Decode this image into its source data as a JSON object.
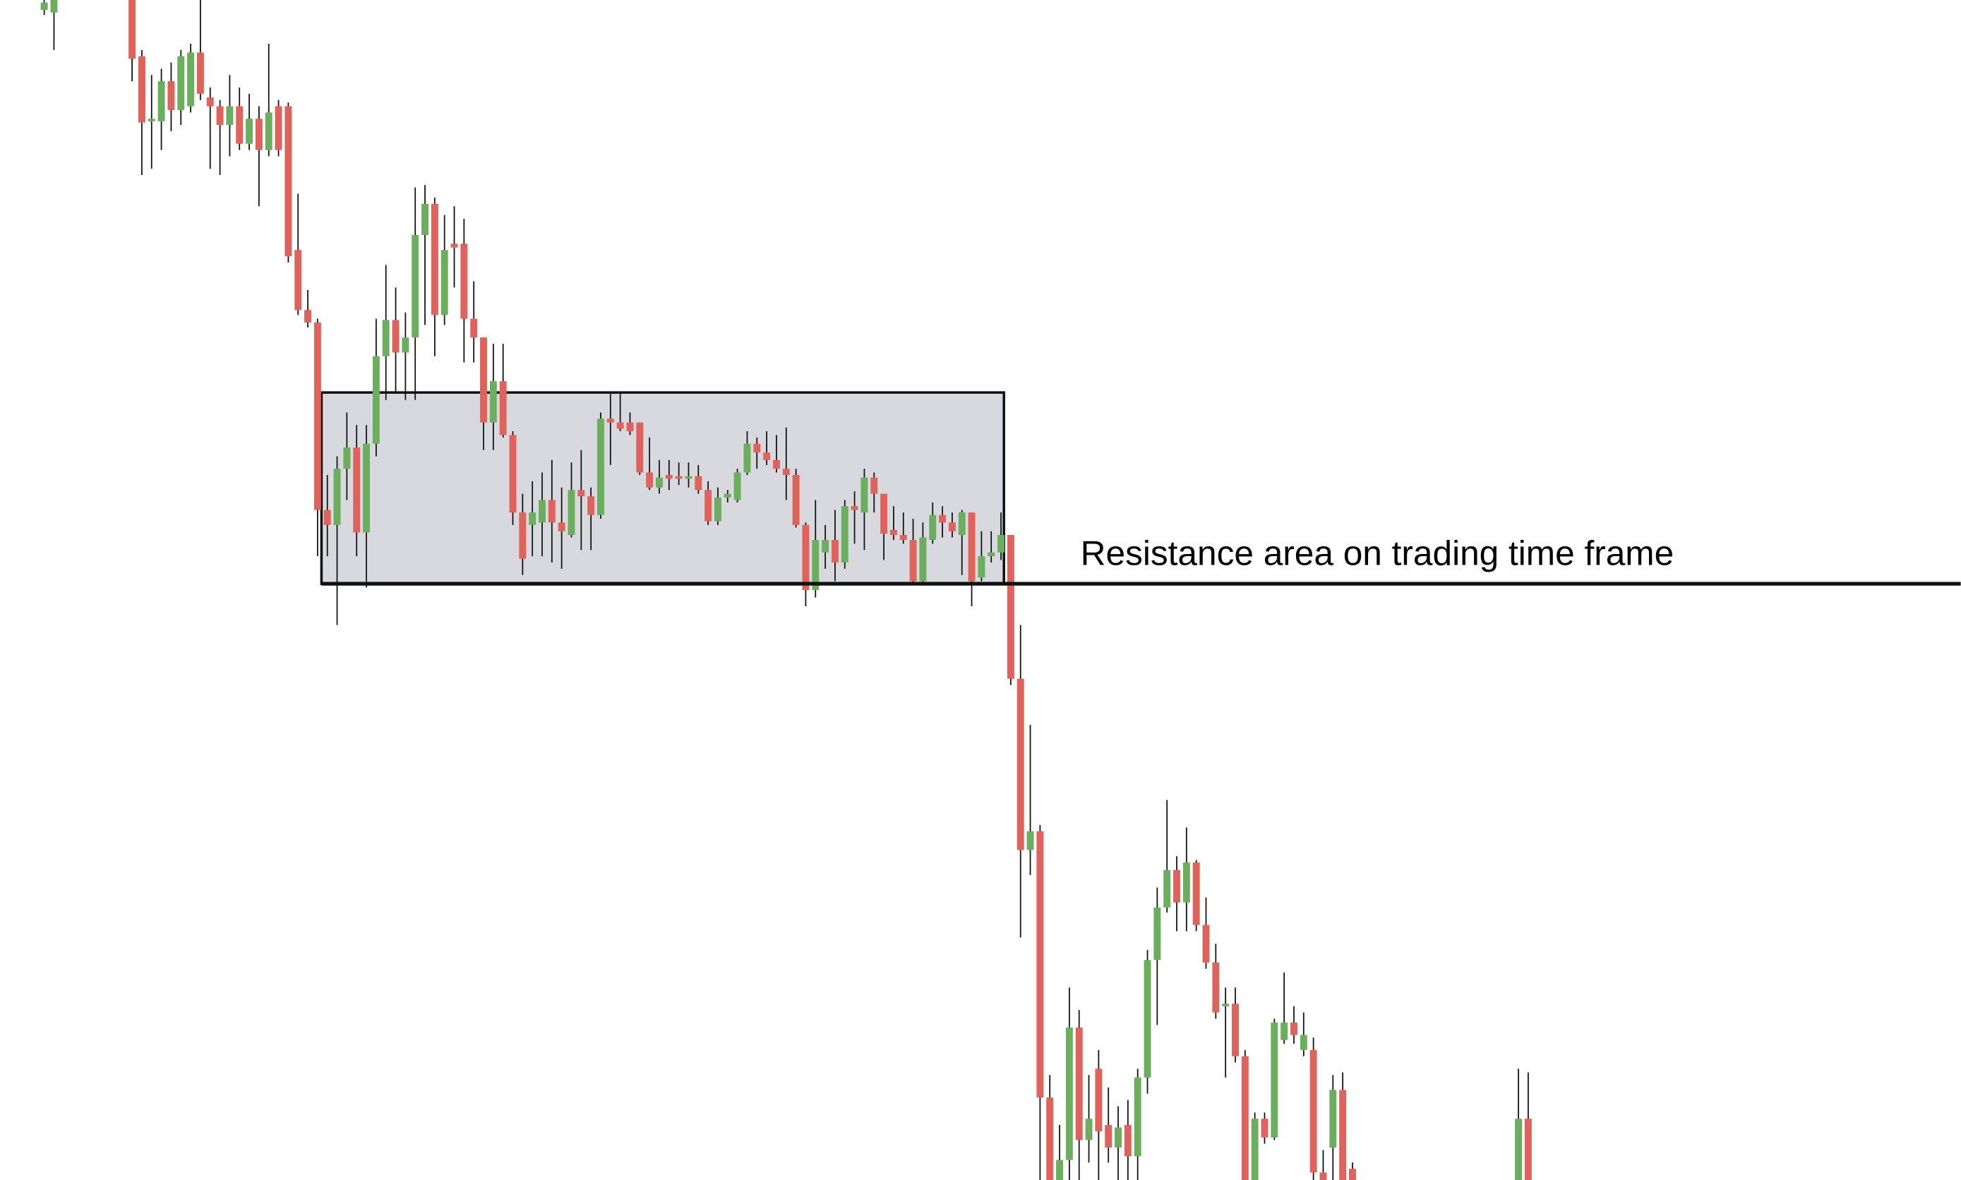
{
  "chart_data": {
    "type": "candlestick",
    "annotation": "Resistance area on trading time frame",
    "xlim": [
      -4.5,
      196.3
    ],
    "ylim": [
      0,
      944
    ],
    "up_color": "#6aae5e",
    "down_color": "#e0625a",
    "zone": {
      "x": [
        28.4,
        98.3
      ],
      "y": [
        477,
        630
      ],
      "color": "#d8d9de"
    },
    "level": 477,
    "x": [
      0,
      1,
      9,
      10,
      11,
      12,
      13,
      14,
      15,
      16,
      17,
      18,
      19,
      20,
      21,
      22,
      23,
      24,
      25,
      26,
      27,
      28,
      29,
      30,
      31,
      32,
      33,
      34,
      35,
      36,
      37,
      38,
      39,
      40,
      41,
      42,
      43,
      44,
      45,
      46,
      47,
      48,
      49,
      50,
      51,
      52,
      53,
      54,
      55,
      56,
      57,
      58,
      59,
      60,
      61,
      62,
      63,
      64,
      65,
      66,
      67,
      68,
      69,
      70,
      71,
      72,
      73,
      74,
      75,
      76,
      77,
      78,
      79,
      80,
      81,
      82,
      83,
      84,
      85,
      86,
      87,
      88,
      89,
      90,
      91,
      92,
      93,
      94,
      95,
      96,
      97,
      98,
      99,
      100,
      101,
      102,
      103,
      104,
      105,
      106,
      107,
      108,
      109,
      110,
      111,
      112,
      113,
      114,
      115,
      116,
      117,
      118,
      119,
      120,
      121,
      122,
      123,
      124,
      125,
      126,
      127,
      128,
      129,
      130,
      131,
      132,
      133,
      134,
      151,
      152
    ],
    "open": [
      936,
      934,
      944,
      899,
      847,
      847,
      879,
      856,
      859,
      902,
      866,
      859,
      844,
      859,
      829,
      849,
      824,
      859,
      859,
      744,
      696,
      686,
      536,
      524,
      569,
      586,
      518,
      589,
      659,
      688,
      662,
      674,
      756,
      781,
      692,
      749,
      749,
      689,
      674,
      606,
      639,
      596,
      534,
      524,
      526,
      544,
      526,
      516,
      552,
      547,
      532,
      609,
      606,
      606,
      606,
      566,
      554,
      564,
      563,
      561,
      563,
      552,
      527,
      546,
      544,
      566,
      589,
      582,
      576,
      569,
      564,
      524,
      472,
      502,
      512,
      494,
      539,
      534,
      562,
      549,
      520,
      516,
      512,
      479,
      512,
      532,
      526,
      516,
      534,
      482,
      499,
      502,
      516,
      401,
      264,
      279,
      66,
      0,
      16,
      122,
      32,
      89,
      44,
      26,
      44,
      19,
      82,
      176,
      218,
      248,
      222,
      254,
      204,
      174,
      139,
      141,
      99,
      0,
      49,
      34,
      112,
      126,
      104,
      104,
      6,
      26,
      72,
      9,
      0,
      49
    ],
    "high": [
      944,
      944,
      944,
      904,
      884,
      889,
      894,
      904,
      909,
      944,
      874,
      864,
      884,
      874,
      869,
      859,
      909,
      864,
      862,
      789,
      712,
      689,
      564,
      579,
      614,
      604,
      604,
      689,
      732,
      714,
      694,
      794,
      796,
      786,
      772,
      779,
      769,
      719,
      674,
      669,
      669,
      599,
      549,
      559,
      566,
      576,
      554,
      574,
      584,
      554,
      614,
      629,
      629,
      614,
      606,
      594,
      576,
      576,
      574,
      574,
      572,
      559,
      554,
      552,
      569,
      599,
      594,
      599,
      596,
      602,
      569,
      526,
      544,
      524,
      536,
      544,
      551,
      569,
      566,
      549,
      539,
      534,
      529,
      526,
      542,
      539,
      534,
      536,
      534,
      519,
      519,
      534,
      516,
      444,
      364,
      284,
      84,
      44,
      154,
      136,
      84,
      104,
      74,
      59,
      64,
      89,
      184,
      234,
      304,
      259,
      282,
      256,
      226,
      189,
      154,
      154,
      104,
      54,
      54,
      129,
      166,
      139,
      134,
      114,
      24,
      84,
      86,
      14,
      89,
      86
    ],
    "low": [
      932,
      904,
      879,
      804,
      809,
      824,
      839,
      844,
      854,
      864,
      809,
      804,
      819,
      824,
      824,
      779,
      819,
      819,
      734,
      692,
      682,
      499,
      499,
      444,
      544,
      499,
      474,
      579,
      624,
      629,
      624,
      624,
      684,
      659,
      684,
      714,
      654,
      654,
      584,
      584,
      594,
      524,
      484,
      499,
      499,
      494,
      489,
      514,
      504,
      504,
      529,
      572,
      599,
      596,
      564,
      552,
      549,
      552,
      556,
      554,
      549,
      524,
      524,
      542,
      542,
      564,
      569,
      572,
      566,
      544,
      522,
      459,
      466,
      489,
      479,
      489,
      509,
      504,
      534,
      496,
      512,
      509,
      478,
      476,
      509,
      514,
      514,
      484,
      459,
      479,
      494,
      496,
      396,
      194,
      244,
      0,
      0,
      0,
      0,
      0,
      14,
      0,
      14,
      0,
      0,
      0,
      69,
      124,
      214,
      199,
      199,
      199,
      169,
      129,
      82,
      94,
      0,
      0,
      29,
      32,
      109,
      109,
      99,
      0,
      0,
      0,
      0,
      0,
      0,
      0
    ],
    "close": [
      942,
      944,
      897,
      846,
      849,
      879,
      856,
      899,
      902,
      869,
      859,
      844,
      859,
      829,
      849,
      824,
      854,
      824,
      739,
      696,
      686,
      536,
      524,
      569,
      586,
      518,
      589,
      659,
      688,
      662,
      674,
      756,
      781,
      692,
      744,
      746,
      689,
      674,
      606,
      639,
      596,
      534,
      497,
      534,
      544,
      526,
      519,
      552,
      547,
      532,
      609,
      606,
      601,
      599,
      566,
      554,
      562,
      561,
      561,
      563,
      552,
      527,
      546,
      549,
      566,
      589,
      582,
      576,
      569,
      564,
      524,
      472,
      512,
      512,
      494,
      539,
      536,
      562,
      549,
      517,
      516,
      512,
      479,
      514,
      532,
      526,
      519,
      534,
      479,
      499,
      502,
      516,
      401,
      264,
      279,
      66,
      0,
      16,
      122,
      32,
      49,
      39,
      26,
      42,
      19,
      82,
      176,
      218,
      248,
      222,
      254,
      204,
      174,
      134,
      141,
      99,
      0,
      49,
      34,
      126,
      126,
      116,
      116,
      6,
      0,
      72,
      0,
      0,
      49,
      0
    ]
  }
}
